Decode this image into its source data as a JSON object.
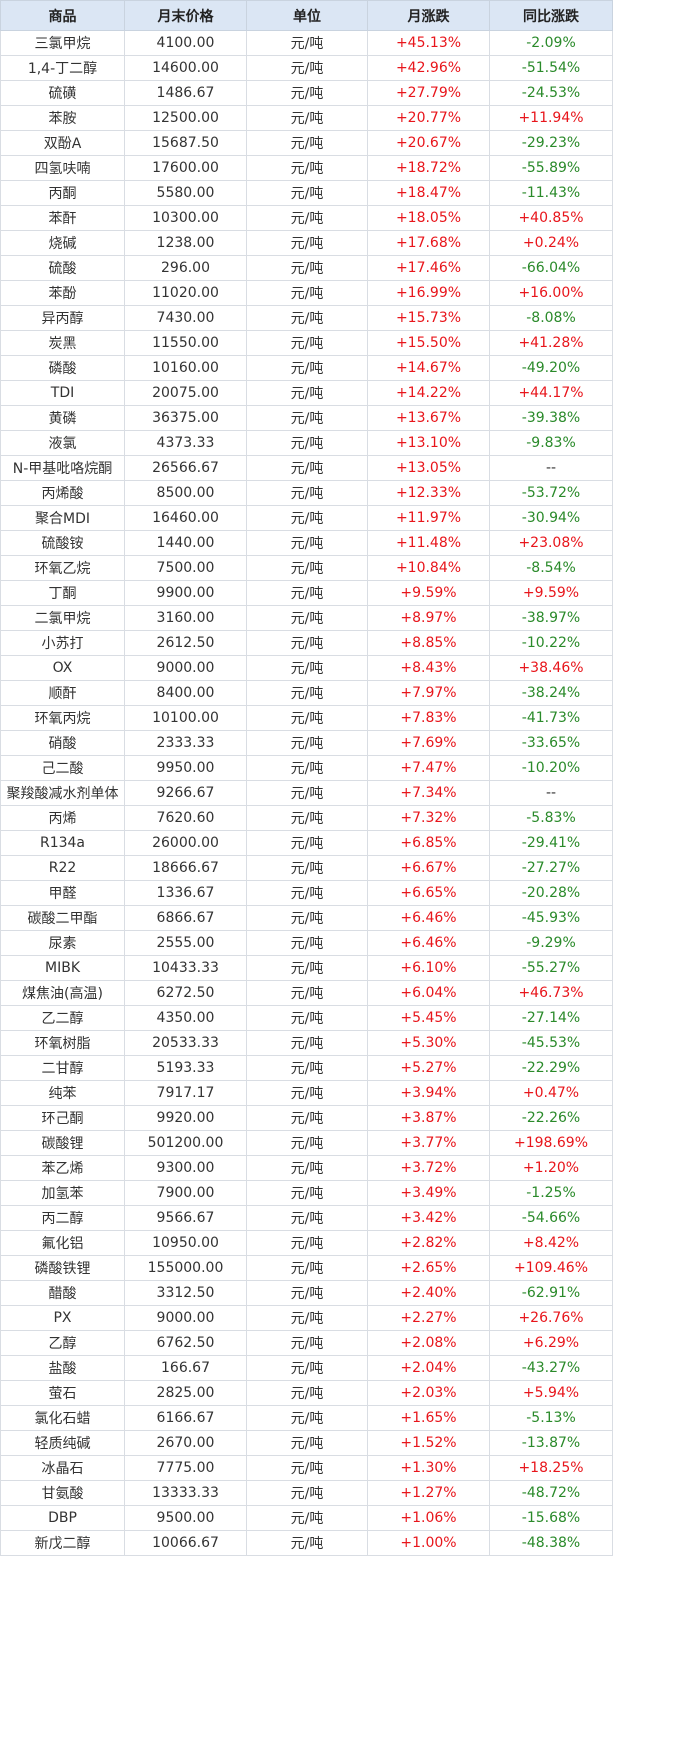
{
  "headers": [
    "商品",
    "月末价格",
    "单位",
    "月涨跌",
    "同比涨跌"
  ],
  "colors": {
    "up": "#e8151b",
    "down": "#2a8a2a",
    "header_bg": "#dbe6f4"
  },
  "rows": [
    {
      "name": "三氯甲烷",
      "price": "4100.00",
      "unit": "元/吨",
      "mom": "+45.13%",
      "yoy": "-2.09%"
    },
    {
      "name": "1,4-丁二醇",
      "price": "14600.00",
      "unit": "元/吨",
      "mom": "+42.96%",
      "yoy": "-51.54%"
    },
    {
      "name": "硫磺",
      "price": "1486.67",
      "unit": "元/吨",
      "mom": "+27.79%",
      "yoy": "-24.53%"
    },
    {
      "name": "苯胺",
      "price": "12500.00",
      "unit": "元/吨",
      "mom": "+20.77%",
      "yoy": "+11.94%"
    },
    {
      "name": "双酚A",
      "price": "15687.50",
      "unit": "元/吨",
      "mom": "+20.67%",
      "yoy": "-29.23%"
    },
    {
      "name": "四氢呋喃",
      "price": "17600.00",
      "unit": "元/吨",
      "mom": "+18.72%",
      "yoy": "-55.89%"
    },
    {
      "name": "丙酮",
      "price": "5580.00",
      "unit": "元/吨",
      "mom": "+18.47%",
      "yoy": "-11.43%"
    },
    {
      "name": "苯酐",
      "price": "10300.00",
      "unit": "元/吨",
      "mom": "+18.05%",
      "yoy": "+40.85%"
    },
    {
      "name": "烧碱",
      "price": "1238.00",
      "unit": "元/吨",
      "mom": "+17.68%",
      "yoy": "+0.24%"
    },
    {
      "name": "硫酸",
      "price": "296.00",
      "unit": "元/吨",
      "mom": "+17.46%",
      "yoy": "-66.04%"
    },
    {
      "name": "苯酚",
      "price": "11020.00",
      "unit": "元/吨",
      "mom": "+16.99%",
      "yoy": "+16.00%"
    },
    {
      "name": "异丙醇",
      "price": "7430.00",
      "unit": "元/吨",
      "mom": "+15.73%",
      "yoy": "-8.08%"
    },
    {
      "name": "炭黑",
      "price": "11550.00",
      "unit": "元/吨",
      "mom": "+15.50%",
      "yoy": "+41.28%"
    },
    {
      "name": "磷酸",
      "price": "10160.00",
      "unit": "元/吨",
      "mom": "+14.67%",
      "yoy": "-49.20%"
    },
    {
      "name": "TDI",
      "price": "20075.00",
      "unit": "元/吨",
      "mom": "+14.22%",
      "yoy": "+44.17%"
    },
    {
      "name": "黄磷",
      "price": "36375.00",
      "unit": "元/吨",
      "mom": "+13.67%",
      "yoy": "-39.38%"
    },
    {
      "name": "液氯",
      "price": "4373.33",
      "unit": "元/吨",
      "mom": "+13.10%",
      "yoy": "-9.83%"
    },
    {
      "name": "N-甲基吡咯烷酮",
      "price": "26566.67",
      "unit": "元/吨",
      "mom": "+13.05%",
      "yoy": "--"
    },
    {
      "name": "丙烯酸",
      "price": "8500.00",
      "unit": "元/吨",
      "mom": "+12.33%",
      "yoy": "-53.72%"
    },
    {
      "name": "聚合MDI",
      "price": "16460.00",
      "unit": "元/吨",
      "mom": "+11.97%",
      "yoy": "-30.94%"
    },
    {
      "name": "硫酸铵",
      "price": "1440.00",
      "unit": "元/吨",
      "mom": "+11.48%",
      "yoy": "+23.08%"
    },
    {
      "name": "环氧乙烷",
      "price": "7500.00",
      "unit": "元/吨",
      "mom": "+10.84%",
      "yoy": "-8.54%"
    },
    {
      "name": "丁酮",
      "price": "9900.00",
      "unit": "元/吨",
      "mom": "+9.59%",
      "yoy": "+9.59%"
    },
    {
      "name": "二氯甲烷",
      "price": "3160.00",
      "unit": "元/吨",
      "mom": "+8.97%",
      "yoy": "-38.97%"
    },
    {
      "name": "小苏打",
      "price": "2612.50",
      "unit": "元/吨",
      "mom": "+8.85%",
      "yoy": "-10.22%"
    },
    {
      "name": "OX",
      "price": "9000.00",
      "unit": "元/吨",
      "mom": "+8.43%",
      "yoy": "+38.46%"
    },
    {
      "name": "顺酐",
      "price": "8400.00",
      "unit": "元/吨",
      "mom": "+7.97%",
      "yoy": "-38.24%"
    },
    {
      "name": "环氧丙烷",
      "price": "10100.00",
      "unit": "元/吨",
      "mom": "+7.83%",
      "yoy": "-41.73%"
    },
    {
      "name": "硝酸",
      "price": "2333.33",
      "unit": "元/吨",
      "mom": "+7.69%",
      "yoy": "-33.65%"
    },
    {
      "name": "己二酸",
      "price": "9950.00",
      "unit": "元/吨",
      "mom": "+7.47%",
      "yoy": "-10.20%"
    },
    {
      "name": "聚羧酸减水剂单体",
      "price": "9266.67",
      "unit": "元/吨",
      "mom": "+7.34%",
      "yoy": "--"
    },
    {
      "name": "丙烯",
      "price": "7620.60",
      "unit": "元/吨",
      "mom": "+7.32%",
      "yoy": "-5.83%"
    },
    {
      "name": "R134a",
      "price": "26000.00",
      "unit": "元/吨",
      "mom": "+6.85%",
      "yoy": "-29.41%"
    },
    {
      "name": "R22",
      "price": "18666.67",
      "unit": "元/吨",
      "mom": "+6.67%",
      "yoy": "-27.27%"
    },
    {
      "name": "甲醛",
      "price": "1336.67",
      "unit": "元/吨",
      "mom": "+6.65%",
      "yoy": "-20.28%"
    },
    {
      "name": "碳酸二甲酯",
      "price": "6866.67",
      "unit": "元/吨",
      "mom": "+6.46%",
      "yoy": "-45.93%"
    },
    {
      "name": "尿素",
      "price": "2555.00",
      "unit": "元/吨",
      "mom": "+6.46%",
      "yoy": "-9.29%"
    },
    {
      "name": "MIBK",
      "price": "10433.33",
      "unit": "元/吨",
      "mom": "+6.10%",
      "yoy": "-55.27%"
    },
    {
      "name": "煤焦油(高温)",
      "price": "6272.50",
      "unit": "元/吨",
      "mom": "+6.04%",
      "yoy": "+46.73%"
    },
    {
      "name": "乙二醇",
      "price": "4350.00",
      "unit": "元/吨",
      "mom": "+5.45%",
      "yoy": "-27.14%"
    },
    {
      "name": "环氧树脂",
      "price": "20533.33",
      "unit": "元/吨",
      "mom": "+5.30%",
      "yoy": "-45.53%"
    },
    {
      "name": "二甘醇",
      "price": "5193.33",
      "unit": "元/吨",
      "mom": "+5.27%",
      "yoy": "-22.29%"
    },
    {
      "name": "纯苯",
      "price": "7917.17",
      "unit": "元/吨",
      "mom": "+3.94%",
      "yoy": "+0.47%"
    },
    {
      "name": "环己酮",
      "price": "9920.00",
      "unit": "元/吨",
      "mom": "+3.87%",
      "yoy": "-22.26%"
    },
    {
      "name": "碳酸锂",
      "price": "501200.00",
      "unit": "元/吨",
      "mom": "+3.77%",
      "yoy": "+198.69%"
    },
    {
      "name": "苯乙烯",
      "price": "9300.00",
      "unit": "元/吨",
      "mom": "+3.72%",
      "yoy": "+1.20%"
    },
    {
      "name": "加氢苯",
      "price": "7900.00",
      "unit": "元/吨",
      "mom": "+3.49%",
      "yoy": "-1.25%"
    },
    {
      "name": "丙二醇",
      "price": "9566.67",
      "unit": "元/吨",
      "mom": "+3.42%",
      "yoy": "-54.66%"
    },
    {
      "name": "氟化铝",
      "price": "10950.00",
      "unit": "元/吨",
      "mom": "+2.82%",
      "yoy": "+8.42%"
    },
    {
      "name": "磷酸铁锂",
      "price": "155000.00",
      "unit": "元/吨",
      "mom": "+2.65%",
      "yoy": "+109.46%"
    },
    {
      "name": "醋酸",
      "price": "3312.50",
      "unit": "元/吨",
      "mom": "+2.40%",
      "yoy": "-62.91%"
    },
    {
      "name": "PX",
      "price": "9000.00",
      "unit": "元/吨",
      "mom": "+2.27%",
      "yoy": "+26.76%"
    },
    {
      "name": "乙醇",
      "price": "6762.50",
      "unit": "元/吨",
      "mom": "+2.08%",
      "yoy": "+6.29%"
    },
    {
      "name": "盐酸",
      "price": "166.67",
      "unit": "元/吨",
      "mom": "+2.04%",
      "yoy": "-43.27%"
    },
    {
      "name": "萤石",
      "price": "2825.00",
      "unit": "元/吨",
      "mom": "+2.03%",
      "yoy": "+5.94%"
    },
    {
      "name": "氯化石蜡",
      "price": "6166.67",
      "unit": "元/吨",
      "mom": "+1.65%",
      "yoy": "-5.13%"
    },
    {
      "name": "轻质纯碱",
      "price": "2670.00",
      "unit": "元/吨",
      "mom": "+1.52%",
      "yoy": "-13.87%"
    },
    {
      "name": "冰晶石",
      "price": "7775.00",
      "unit": "元/吨",
      "mom": "+1.30%",
      "yoy": "+18.25%"
    },
    {
      "name": "甘氨酸",
      "price": "13333.33",
      "unit": "元/吨",
      "mom": "+1.27%",
      "yoy": "-48.72%"
    },
    {
      "name": "DBP",
      "price": "9500.00",
      "unit": "元/吨",
      "mom": "+1.06%",
      "yoy": "-15.68%"
    },
    {
      "name": "新戊二醇",
      "price": "10066.67",
      "unit": "元/吨",
      "mom": "+1.00%",
      "yoy": "-48.38%"
    }
  ]
}
